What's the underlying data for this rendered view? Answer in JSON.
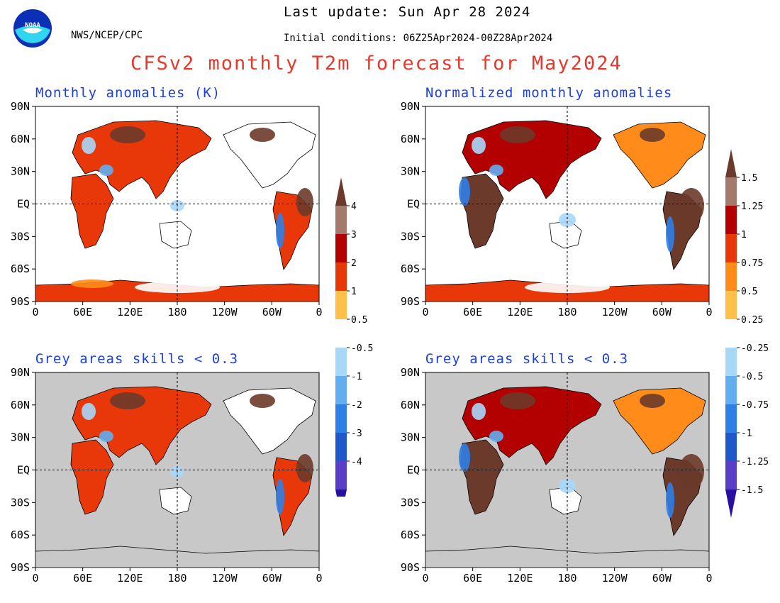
{
  "header": {
    "org": "NWS/NCEP/CPC",
    "logo_text": "NOAA",
    "last_update": "Last update: Sun Apr 28 2024",
    "initial_conditions": "Initial conditions: 06Z25Apr2024-00Z28Apr2024",
    "title": "CFSv2 monthly T2m forecast for May2024"
  },
  "panels": [
    {
      "id": "anom",
      "title": "Monthly anomalies (K)"
    },
    {
      "id": "norm",
      "title": "Normalized monthly anomalies"
    },
    {
      "id": "anom-skill",
      "title": "Grey areas skills < 0.3"
    },
    {
      "id": "norm-skill",
      "title": "Grey areas skills < 0.3"
    }
  ],
  "axes": {
    "lat_labels": [
      "90N",
      "60N",
      "30N",
      "EQ",
      "30S",
      "60S",
      "90S"
    ],
    "lon_labels": [
      "0",
      "60E",
      "120E",
      "180",
      "120W",
      "60W",
      "0"
    ]
  },
  "colorbars": {
    "anom_labels": [
      "4",
      "3",
      "2",
      "1",
      "0.5",
      "-0.5",
      "-1",
      "-2",
      "-3",
      "-4"
    ],
    "norm_labels": [
      "1.5",
      "1.25",
      "1",
      "0.75",
      "0.5",
      "0.25",
      "-0.25",
      "-0.5",
      "-0.75",
      "-1",
      "-1.25",
      "-1.5"
    ],
    "colors": {
      "warm_top": "#6b3a2a",
      "brown": "#a37a6c",
      "dark_red": "#b30000",
      "red": "#e8380a",
      "orange": "#ff8c1a",
      "light_orange": "#ffc04a",
      "white": "#ffffff",
      "light_blue": "#a8d8f8",
      "blue1": "#62aef0",
      "blue2": "#2f80e6",
      "blue3": "#1f58c8",
      "purple": "#5a3ec8",
      "deep_purple": "#2a10a0",
      "skill_grey": "#c8c8c8"
    }
  }
}
